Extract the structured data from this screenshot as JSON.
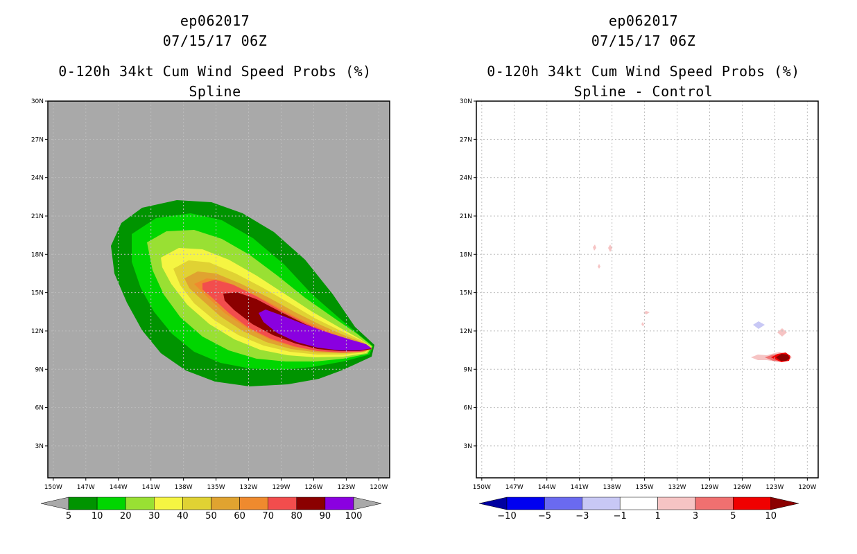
{
  "left_panel": {
    "title_line1": "ep062017",
    "title_line2": "07/15/17 06Z",
    "title_line3": "0-120h 34kt Cum Wind Speed Probs (%)",
    "title_line4": "Spline"
  },
  "right_panel": {
    "title_line1": "ep062017",
    "title_line2": "07/15/17 06Z",
    "title_line3": "0-120h 34kt Cum Wind Speed Probs (%)",
    "title_line4": "Spline - Control"
  },
  "colors": {
    "land_gray": "#a9a9a9",
    "prob_levels": [
      "#009400",
      "#00d600",
      "#99e033",
      "#f5f542",
      "#e0d233",
      "#e0a330",
      "#ef8a2e",
      "#f24d4d",
      "#8b0000",
      "#8a00e0"
    ],
    "diff_levels": [
      "#0000a0",
      "#0000f0",
      "#6a6af0",
      "#c8c8f5",
      "#ffffff",
      "#f6c4c4",
      "#f07070",
      "#f00000",
      "#8b0000"
    ]
  },
  "chart_data": [
    {
      "type": "heatmap",
      "title": "0-120h 34kt Cum Wind Speed Probs (%)",
      "subtitle": "Spline",
      "x_ticks": [
        "150W",
        "147W",
        "144W",
        "141W",
        "138W",
        "135W",
        "132W",
        "129W",
        "126W",
        "123W",
        "120W"
      ],
      "y_ticks": [
        "3N",
        "6N",
        "9N",
        "12N",
        "15N",
        "18N",
        "21N",
        "24N",
        "27N",
        "30N"
      ],
      "xlim": [
        -150.5,
        -119
      ],
      "ylim": [
        0.5,
        30
      ],
      "colorbar_labels": [
        "5",
        "10",
        "20",
        "30",
        "40",
        "50",
        "60",
        "70",
        "80",
        "90",
        "100"
      ],
      "grid": true
    },
    {
      "type": "heatmap",
      "title": "0-120h 34kt Cum Wind Speed Probs (%)",
      "subtitle": "Spline - Control",
      "x_ticks": [
        "150W",
        "147W",
        "144W",
        "141W",
        "138W",
        "135W",
        "132W",
        "129W",
        "126W",
        "123W",
        "120W"
      ],
      "y_ticks": [
        "3N",
        "6N",
        "9N",
        "12N",
        "15N",
        "18N",
        "21N",
        "24N",
        "27N",
        "30N"
      ],
      "xlim": [
        -150.5,
        -119
      ],
      "ylim": [
        0.5,
        30
      ],
      "colorbar_labels": [
        "−10",
        "−5",
        "−3",
        "−1",
        "1",
        "3",
        "5",
        "10"
      ],
      "grid": true
    }
  ]
}
